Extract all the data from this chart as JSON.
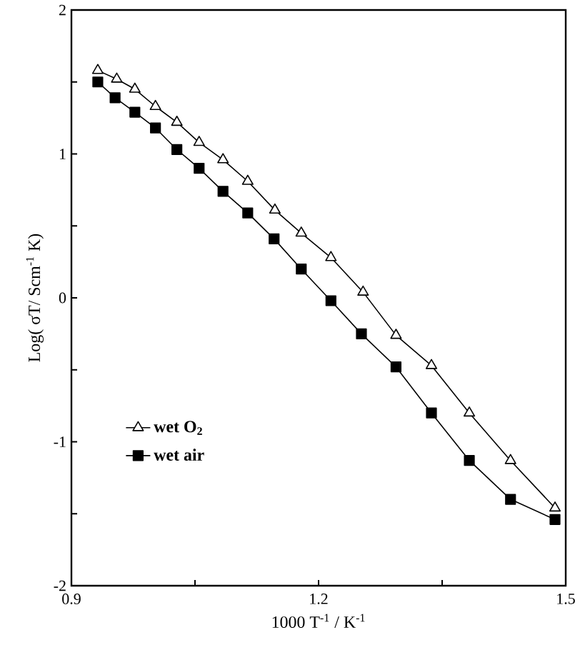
{
  "chart_data": {
    "type": "line",
    "xlabel": "1000 T$^{-1}$ / K$^{-1}$",
    "ylabel": "Log( σT/ Scm$^{-1}$ K)",
    "xlim": [
      0.9,
      1.5
    ],
    "ylim": [
      -2,
      2
    ],
    "xticks": [
      0.9,
      {
        "value": 1.05,
        "label": null
      },
      1.2,
      {
        "value": 1.35,
        "label": null
      },
      1.5
    ],
    "yticks": [
      -2,
      {
        "value": -1.5,
        "label": null
      },
      -1,
      {
        "value": -0.5,
        "label": null
      },
      0,
      {
        "value": 0.5,
        "label": null
      },
      1,
      {
        "value": 1.5,
        "label": null
      },
      2
    ],
    "grid": false,
    "legend": "left",
    "line_style": "solid",
    "series": [
      {
        "name": "wet O$_{2}$",
        "color": "#000000",
        "marker": "triangle",
        "x": [
          0.932,
          0.955,
          0.977,
          1.002,
          1.028,
          1.055,
          1.084,
          1.114,
          1.147,
          1.179,
          1.215,
          1.254,
          1.294,
          1.337,
          1.383,
          1.433,
          1.487
        ],
        "values": [
          1.58,
          1.52,
          1.45,
          1.33,
          1.22,
          1.08,
          0.96,
          0.81,
          0.61,
          0.45,
          0.28,
          0.04,
          -0.26,
          -0.47,
          -0.8,
          -1.13,
          -1.46
        ]
      },
      {
        "name": "wet air",
        "color": "#000000",
        "marker": "square",
        "x": [
          0.932,
          0.953,
          0.977,
          1.002,
          1.028,
          1.055,
          1.084,
          1.114,
          1.146,
          1.179,
          1.215,
          1.252,
          1.294,
          1.337,
          1.383,
          1.433,
          1.487
        ],
        "values": [
          1.5,
          1.39,
          1.29,
          1.18,
          1.03,
          0.9,
          0.74,
          0.59,
          0.41,
          0.2,
          -0.02,
          -0.25,
          -0.48,
          -0.8,
          -1.13,
          -1.4,
          -1.54
        ]
      }
    ]
  }
}
